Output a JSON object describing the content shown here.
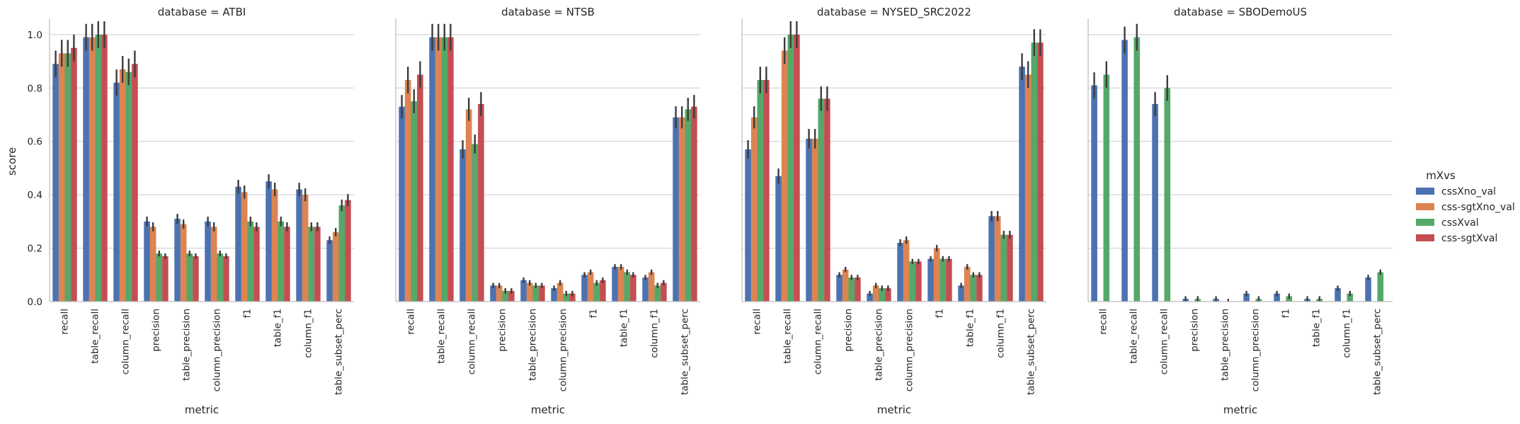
{
  "chart_data": {
    "type": "bar",
    "ylabel": "score",
    "xlabel": "metric",
    "ylim": [
      0,
      1.05
    ],
    "yticks": [
      0.0,
      0.2,
      0.4,
      0.6,
      0.8,
      1.0
    ],
    "grid": "horizontal",
    "legend": {
      "title": "mXvs",
      "placement": "right",
      "entries": [
        "cssXno_val",
        "css-sgtXno_val",
        "cssXval",
        "css-sgtXval"
      ]
    },
    "colors": [
      "#4c72b0",
      "#dd8452",
      "#55a868",
      "#c44e52"
    ],
    "categories": [
      "recall",
      "table_recall",
      "column_recall",
      "precision",
      "table_precision",
      "column_precision",
      "f1",
      "table_f1",
      "column_f1",
      "table_subset_perc"
    ],
    "panels": [
      {
        "title": "database = ATBI",
        "series": [
          {
            "name": "cssXno_val",
            "values": [
              0.89,
              0.99,
              0.82,
              0.3,
              0.31,
              0.3,
              0.43,
              0.45,
              0.42,
              0.23
            ]
          },
          {
            "name": "css-sgtXno_val",
            "values": [
              0.93,
              0.99,
              0.87,
              0.28,
              0.29,
              0.28,
              0.41,
              0.42,
              0.4,
              0.26
            ]
          },
          {
            "name": "cssXval",
            "values": [
              0.93,
              1.0,
              0.86,
              0.18,
              0.18,
              0.18,
              0.3,
              0.3,
              0.28,
              0.36
            ]
          },
          {
            "name": "css-sgtXval",
            "values": [
              0.95,
              1.0,
              0.89,
              0.17,
              0.17,
              0.17,
              0.28,
              0.28,
              0.28,
              0.38
            ]
          }
        ]
      },
      {
        "title": "database = NTSB",
        "series": [
          {
            "name": "cssXno_val",
            "values": [
              0.73,
              0.99,
              0.57,
              0.06,
              0.08,
              0.05,
              0.1,
              0.13,
              0.09,
              0.69
            ]
          },
          {
            "name": "css-sgtXno_val",
            "values": [
              0.83,
              0.99,
              0.72,
              0.06,
              0.07,
              0.07,
              0.11,
              0.13,
              0.11,
              0.69
            ]
          },
          {
            "name": "cssXval",
            "values": [
              0.75,
              0.99,
              0.59,
              0.04,
              0.06,
              0.03,
              0.07,
              0.11,
              0.06,
              0.72
            ]
          },
          {
            "name": "css-sgtXval",
            "values": [
              0.85,
              0.99,
              0.74,
              0.04,
              0.06,
              0.03,
              0.08,
              0.1,
              0.07,
              0.73
            ]
          }
        ]
      },
      {
        "title": "database = NYSED_SRC2022",
        "series": [
          {
            "name": "cssXno_val",
            "values": [
              0.57,
              0.47,
              0.61,
              0.1,
              0.03,
              0.22,
              0.16,
              0.06,
              0.32,
              0.88
            ]
          },
          {
            "name": "css-sgtXno_val",
            "values": [
              0.69,
              0.94,
              0.61,
              0.12,
              0.06,
              0.23,
              0.2,
              0.13,
              0.32,
              0.85
            ]
          },
          {
            "name": "cssXval",
            "values": [
              0.83,
              1.0,
              0.76,
              0.09,
              0.05,
              0.15,
              0.16,
              0.1,
              0.25,
              0.97
            ]
          },
          {
            "name": "css-sgtXval",
            "values": [
              0.83,
              1.0,
              0.76,
              0.09,
              0.05,
              0.15,
              0.16,
              0.1,
              0.25,
              0.97
            ]
          }
        ]
      },
      {
        "title": "database = SBODemoUS",
        "series": [
          {
            "name": "cssXno_val",
            "values": [
              0.81,
              0.98,
              0.74,
              0.01,
              0.01,
              0.03,
              0.03,
              0.01,
              0.05,
              0.09
            ]
          },
          {
            "name": "css-sgtXno_val",
            "values": [
              null,
              null,
              null,
              null,
              null,
              null,
              null,
              null,
              null,
              null
            ]
          },
          {
            "name": "cssXval",
            "values": [
              0.85,
              0.99,
              0.8,
              0.01,
              0.0,
              0.01,
              0.02,
              0.01,
              0.03,
              0.11
            ]
          },
          {
            "name": "css-sgtXval",
            "values": [
              null,
              null,
              null,
              null,
              null,
              null,
              null,
              null,
              null,
              null
            ]
          }
        ]
      }
    ]
  }
}
